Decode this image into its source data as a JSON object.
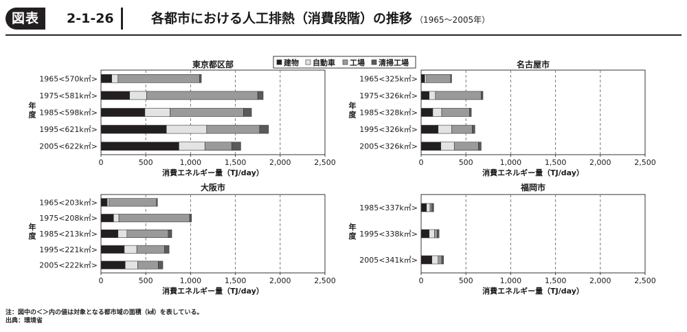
{
  "header": {
    "figure_label": "図表",
    "figure_number": "2-1-26",
    "title": "各都市における人工排熱（消費段階）の推移",
    "period": "（1965～2005年）"
  },
  "legend": {
    "items": [
      {
        "label": "建物",
        "color": "#231f20"
      },
      {
        "label": "自動車",
        "color": "#e3e3e3"
      },
      {
        "label": "工場",
        "color": "#9a9a9a"
      },
      {
        "label": "清掃工場",
        "color": "#5a5a5a"
      }
    ]
  },
  "chart_data": [
    {
      "type": "bar",
      "orientation": "horizontal",
      "stacked": true,
      "title": "東京都区部",
      "xlabel": "消費エネルギー量（TJ/day）",
      "ylabel": "年度",
      "xlim": [
        0,
        2500
      ],
      "xticks": [
        "0",
        "500",
        "1,000",
        "1,500",
        "2,000",
        "2,500"
      ],
      "grid": "vertical-dashed",
      "legend_position": "top-right",
      "categories": [
        "1965<570k㎡>",
        "1975<581k㎡>",
        "1985<598k㎡>",
        "1995<621k㎡>",
        "2005<622k㎡>"
      ],
      "series": [
        {
          "name": "建物",
          "values": [
            120,
            320,
            490,
            730,
            870
          ]
        },
        {
          "name": "自動車",
          "values": [
            70,
            190,
            280,
            450,
            290
          ]
        },
        {
          "name": "工場",
          "values": [
            910,
            1240,
            820,
            590,
            300
          ]
        },
        {
          "name": "清掃工場",
          "values": [
            20,
            60,
            90,
            100,
            100
          ]
        }
      ]
    },
    {
      "type": "bar",
      "orientation": "horizontal",
      "stacked": true,
      "title": "名古屋市",
      "xlabel": "消費エネルギー量（TJ/day）",
      "ylabel": "年度",
      "xlim": [
        0,
        2500
      ],
      "xticks": [
        "0",
        "500",
        "1,000",
        "1,500",
        "2,000",
        "2,500"
      ],
      "grid": "vertical-dashed",
      "categories": [
        "1965<325k㎡>",
        "1975<326k㎡>",
        "1985<328k㎡>",
        "1995<326k㎡>",
        "2005<326k㎡>"
      ],
      "series": [
        {
          "name": "建物",
          "values": [
            40,
            90,
            130,
            190,
            220
          ]
        },
        {
          "name": "自動車",
          "values": [
            20,
            70,
            100,
            150,
            150
          ]
        },
        {
          "name": "工場",
          "values": [
            270,
            510,
            310,
            230,
            270
          ]
        },
        {
          "name": "清掃工場",
          "values": [
            10,
            20,
            20,
            30,
            30
          ]
        }
      ]
    },
    {
      "type": "bar",
      "orientation": "horizontal",
      "stacked": true,
      "title": "大阪市",
      "xlabel": "消費エネルギー量（TJ/day）",
      "ylabel": "年度",
      "xlim": [
        0,
        2500
      ],
      "xticks": [
        "0",
        "500",
        "1,000",
        "1,500",
        "2,000",
        "2,500"
      ],
      "grid": "vertical-dashed",
      "categories": [
        "1965<203k㎡>",
        "1975<208k㎡>",
        "1985<213k㎡>",
        "1995<221k㎡>",
        "2005<222k㎡>"
      ],
      "series": [
        {
          "name": "建物",
          "values": [
            70,
            140,
            190,
            260,
            270
          ]
        },
        {
          "name": "自動車",
          "values": [
            20,
            60,
            100,
            140,
            140
          ]
        },
        {
          "name": "工場",
          "values": [
            530,
            790,
            460,
            310,
            230
          ]
        },
        {
          "name": "清掃工場",
          "values": [
            10,
            20,
            40,
            50,
            50
          ]
        }
      ]
    },
    {
      "type": "bar",
      "orientation": "horizontal",
      "stacked": true,
      "title": "福岡市",
      "xlabel": "消費エネルギー量（TJ/day）",
      "ylabel": "年度",
      "xlim": [
        0,
        2500
      ],
      "xticks": [
        "0",
        "500",
        "1,000",
        "1,500",
        "2,000",
        "2,500"
      ],
      "grid": "vertical-dashed",
      "categories": [
        "1985<337k㎡>",
        "1995<338k㎡>",
        "2005<341k㎡>"
      ],
      "series": [
        {
          "name": "建物",
          "values": [
            60,
            90,
            120
          ]
        },
        {
          "name": "自動車",
          "values": [
            40,
            60,
            70
          ]
        },
        {
          "name": "工場",
          "values": [
            20,
            30,
            40
          ]
        },
        {
          "name": "清掃工場",
          "values": [
            20,
            20,
            20
          ]
        }
      ]
    }
  ],
  "footer": {
    "note": "注：図中の＜＞内の値は対象となる都市域の面積（㎢）を表している。",
    "source": "出典：環境省"
  }
}
